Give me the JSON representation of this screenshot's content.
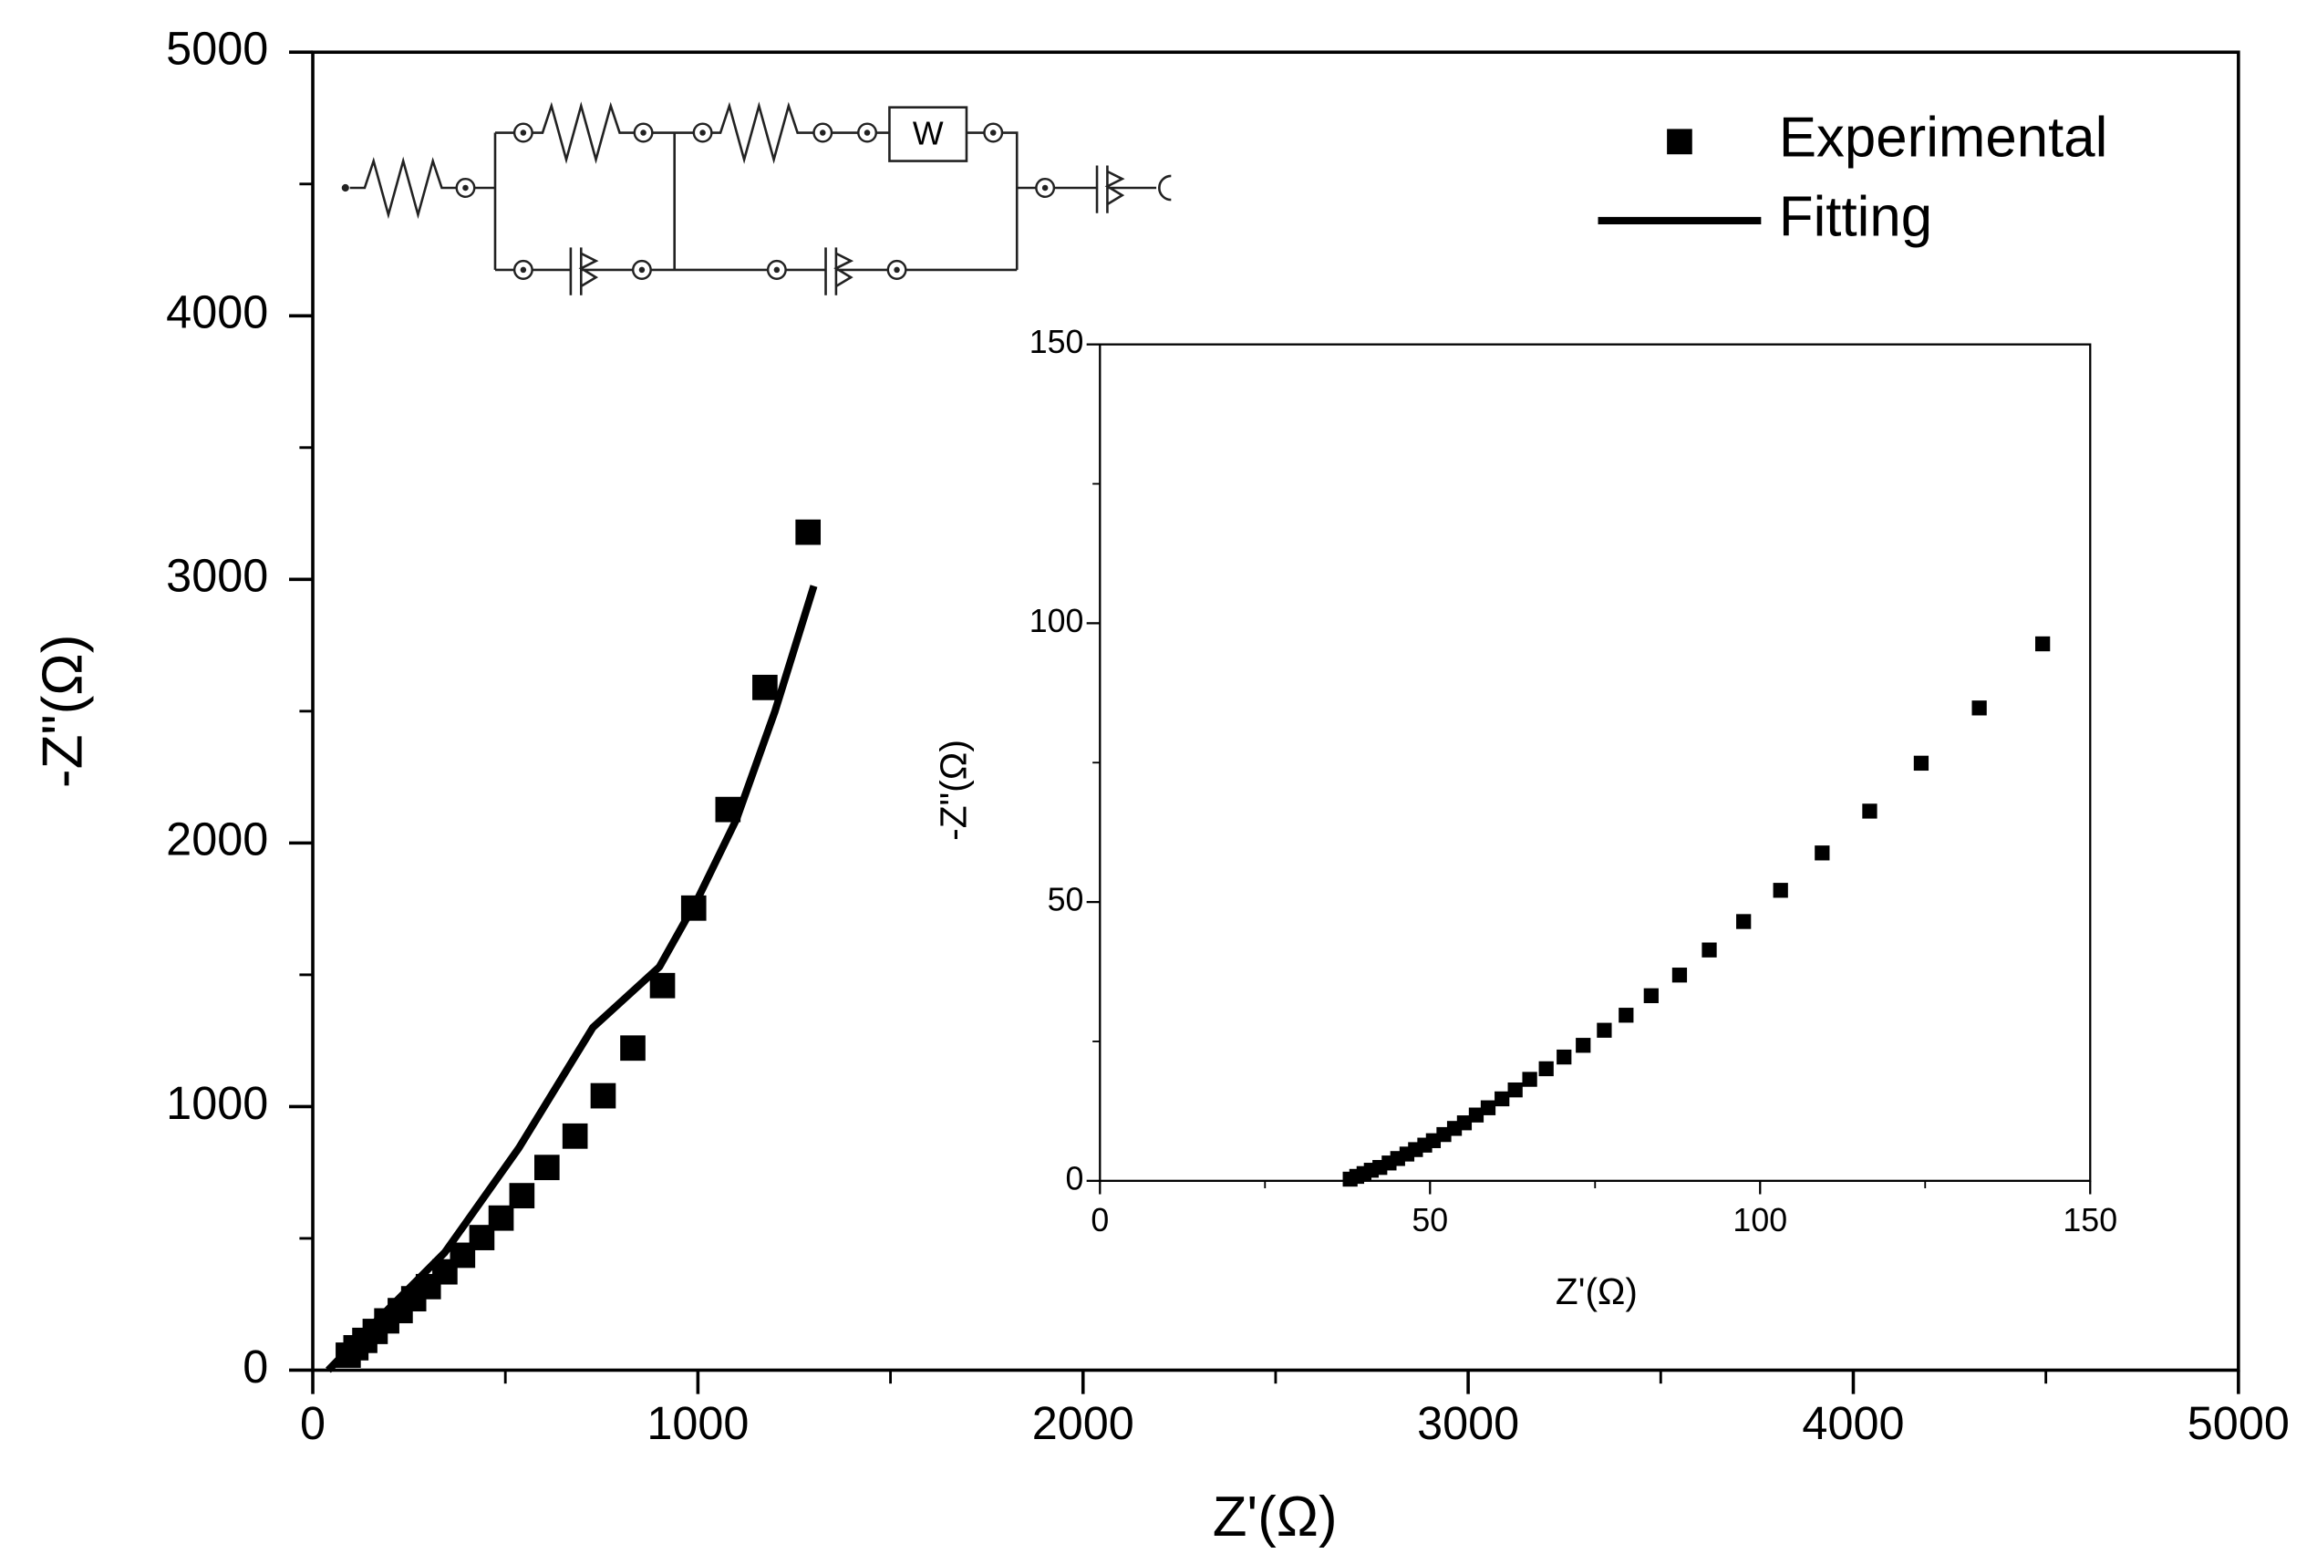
{
  "chart_data": [
    {
      "type": "scatter",
      "x_label": "Z'(Ω)",
      "y_label": "-Z\"(Ω)",
      "xlim": [
        0,
        5000
      ],
      "ylim": [
        0,
        5000
      ],
      "xticks": [
        0,
        1000,
        2000,
        3000,
        4000,
        5000
      ],
      "yticks": [
        0,
        1000,
        2000,
        3000,
        4000,
        5000
      ],
      "minor_xticks": [
        500,
        1500,
        2500,
        3500,
        4500
      ],
      "minor_yticks": [
        500,
        1500,
        2500,
        3500,
        4500
      ],
      "legend": "top-right",
      "series": [
        {
          "name": "Experimental",
          "mode": "markers",
          "color": "#000000",
          "x": [
            92,
            112,
            135,
            162,
            192,
            227,
            262,
            300,
            343,
            389,
            439,
            489,
            543,
            608,
            681,
            754,
            831,
            908,
            989,
            1078,
            1174,
            1286
          ],
          "values": [
            57,
            85,
            113,
            147,
            187,
            226,
            271,
            317,
            373,
            436,
            503,
            577,
            662,
            769,
            888,
            1041,
            1222,
            1459,
            1753,
            2127,
            2590,
            3179
          ]
        },
        {
          "name": "Fitting",
          "mode": "lines",
          "color": "#000000",
          "x": [
            40,
            150,
            343,
            535,
            727,
            900,
            1000,
            1100,
            1200,
            1301
          ],
          "values": [
            0,
            164,
            447,
            843,
            1300,
            1530,
            1790,
            2090,
            2500,
            2975
          ]
        }
      ]
    },
    {
      "type": "scatter",
      "x_label": "Z'(Ω)",
      "y_label": "-Z\"(Ω)",
      "xlim": [
        0,
        150
      ],
      "ylim": [
        0,
        150
      ],
      "xticks": [
        0,
        50,
        100,
        150
      ],
      "yticks": [
        0,
        50,
        100,
        150
      ],
      "minor_xticks": [
        25,
        75,
        125
      ],
      "minor_yticks": [
        25,
        75,
        125
      ],
      "color": "#000000",
      "x": [
        37.9,
        38.9,
        40.0,
        41.1,
        42.4,
        43.8,
        45.1,
        46.5,
        47.8,
        49.2,
        50.5,
        52.1,
        53.7,
        55.2,
        57.0,
        58.8,
        60.9,
        62.9,
        65.1,
        67.6,
        70.3,
        73.2,
        76.4,
        79.7,
        83.5,
        87.8,
        92.3,
        97.5,
        103.1,
        109.4,
        116.6,
        124.4,
        133.2,
        142.8
      ],
      "values": [
        0.3,
        0.8,
        1.3,
        1.9,
        2.4,
        3.2,
        4.0,
        4.8,
        5.6,
        6.4,
        7.2,
        8.3,
        9.4,
        10.4,
        11.8,
        13.1,
        14.7,
        16.3,
        18.2,
        20.1,
        22.2,
        24.3,
        27.0,
        29.7,
        33.2,
        36.9,
        41.4,
        46.5,
        52.1,
        58.8,
        66.3,
        74.9,
        84.8,
        96.3
      ]
    }
  ],
  "circuit": {
    "element_label": "W"
  }
}
